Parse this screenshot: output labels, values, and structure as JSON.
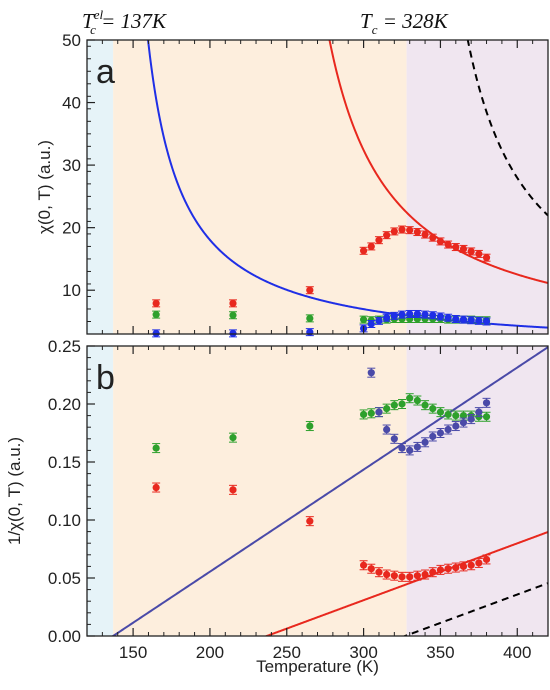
{
  "chart_data": [
    {
      "type": "scatter",
      "panel_label": "a",
      "ylabel": "χ(0, T) (a.u.)",
      "xlim": [
        120,
        420
      ],
      "ylim": [
        3,
        50
      ],
      "yticks": [
        10,
        20,
        30,
        40,
        50
      ],
      "ytick_labels": [
        "10",
        "20",
        "30",
        "40",
        "50"
      ],
      "shaded_regions": [
        {
          "from": 120,
          "to": 137,
          "color": "#e6f3f8"
        },
        {
          "from": 137,
          "to": 328,
          "color": "#fdeedd"
        },
        {
          "from": 328,
          "to": 420,
          "color": "#f0e6f0"
        }
      ],
      "series": [
        {
          "color": "#e8281e",
          "points": [
            [
              165,
              7.9
            ],
            [
              215,
              7.9
            ],
            [
              265,
              10.0
            ],
            [
              300,
              16.3
            ],
            [
              305,
              17.0
            ],
            [
              310,
              18.0
            ],
            [
              315,
              18.8
            ],
            [
              320,
              19.4
            ],
            [
              325,
              19.7
            ],
            [
              330,
              19.6
            ],
            [
              335,
              19.3
            ],
            [
              340,
              18.9
            ],
            [
              345,
              18.4
            ],
            [
              350,
              17.8
            ],
            [
              355,
              17.3
            ],
            [
              360,
              16.9
            ],
            [
              365,
              16.6
            ],
            [
              370,
              16.2
            ],
            [
              375,
              15.8
            ],
            [
              380,
              15.2
            ]
          ]
        },
        {
          "color": "#2ea02c",
          "points": [
            [
              165,
              6.1
            ],
            [
              215,
              6.0
            ],
            [
              265,
              5.5
            ],
            [
              300,
              5.3
            ],
            [
              305,
              5.2
            ],
            [
              310,
              5.3
            ],
            [
              315,
              5.3
            ],
            [
              320,
              5.4
            ],
            [
              325,
              5.4
            ],
            [
              330,
              5.4
            ],
            [
              335,
              5.4
            ],
            [
              340,
              5.4
            ],
            [
              345,
              5.4
            ],
            [
              350,
              5.4
            ],
            [
              355,
              5.3
            ],
            [
              360,
              5.3
            ],
            [
              365,
              5.3
            ],
            [
              370,
              5.3
            ],
            [
              375,
              5.2
            ],
            [
              380,
              5.2
            ]
          ]
        },
        {
          "color": "#1f2fe6",
          "points": [
            [
              165,
              3.1
            ],
            [
              215,
              3.1
            ],
            [
              265,
              3.3
            ],
            [
              300,
              3.9
            ],
            [
              305,
              4.6
            ],
            [
              310,
              5.1
            ],
            [
              315,
              5.6
            ],
            [
              320,
              5.9
            ],
            [
              325,
              6.1
            ],
            [
              330,
              6.2
            ],
            [
              335,
              6.2
            ],
            [
              340,
              6.1
            ],
            [
              345,
              6.0
            ],
            [
              350,
              5.8
            ],
            [
              355,
              5.6
            ],
            [
              360,
              5.4
            ],
            [
              365,
              5.3
            ],
            [
              370,
              5.2
            ],
            [
              375,
              5.1
            ],
            [
              380,
              5.0
            ]
          ]
        }
      ],
      "curves": [
        {
          "color": "#1f2fe6",
          "style": "solid",
          "function": "1/(0.00088*(T-137))"
        },
        {
          "color": "#e8281e",
          "style": "solid",
          "function": "1/(0.00049*(T-237))"
        },
        {
          "color": "#000000",
          "style": "dashed",
          "function": "1/(0.00049*(T-327))"
        }
      ]
    },
    {
      "type": "scatter",
      "panel_label": "b",
      "xlabel": "Temperature (K)",
      "ylabel": "1/χ(0, T) (a.u.)",
      "xlim": [
        120,
        420
      ],
      "ylim": [
        0,
        0.25
      ],
      "xticks": [
        150,
        200,
        250,
        300,
        350,
        400
      ],
      "xtick_labels": [
        "150",
        "200",
        "250",
        "300",
        "350",
        "400"
      ],
      "yticks": [
        0,
        0.05,
        0.1,
        0.15,
        0.2,
        0.25
      ],
      "ytick_labels": [
        "0.00",
        "0.05",
        "0.10",
        "0.15",
        "0.20",
        "0.25"
      ],
      "shaded_regions": [
        {
          "from": 120,
          "to": 137,
          "color": "#e6f3f8"
        },
        {
          "from": 137,
          "to": 328,
          "color": "#fdeedd"
        },
        {
          "from": 328,
          "to": 420,
          "color": "#f0e6f0"
        }
      ],
      "series": [
        {
          "color": "#e8281e",
          "points": [
            [
              165,
              0.128
            ],
            [
              215,
              0.126
            ],
            [
              265,
              0.099
            ],
            [
              300,
              0.061
            ],
            [
              305,
              0.058
            ],
            [
              310,
              0.055
            ],
            [
              315,
              0.053
            ],
            [
              320,
              0.052
            ],
            [
              325,
              0.051
            ],
            [
              330,
              0.051
            ],
            [
              335,
              0.052
            ],
            [
              340,
              0.053
            ],
            [
              345,
              0.055
            ],
            [
              350,
              0.057
            ],
            [
              355,
              0.058
            ],
            [
              360,
              0.059
            ],
            [
              365,
              0.06
            ],
            [
              370,
              0.061
            ],
            [
              375,
              0.063
            ],
            [
              380,
              0.066
            ]
          ]
        },
        {
          "color": "#2ea02c",
          "points": [
            [
              165,
              0.162
            ],
            [
              215,
              0.171
            ],
            [
              265,
              0.181
            ],
            [
              300,
              0.191
            ],
            [
              305,
              0.192
            ],
            [
              310,
              0.193
            ],
            [
              315,
              0.196
            ],
            [
              320,
              0.199
            ],
            [
              325,
              0.2
            ],
            [
              330,
              0.205
            ],
            [
              335,
              0.203
            ],
            [
              340,
              0.199
            ],
            [
              345,
              0.196
            ],
            [
              350,
              0.193
            ],
            [
              355,
              0.191
            ],
            [
              360,
              0.19
            ],
            [
              365,
              0.19
            ],
            [
              370,
              0.19
            ],
            [
              375,
              0.189
            ],
            [
              380,
              0.189
            ]
          ]
        },
        {
          "color": "#4a4aa8",
          "points": [
            [
              305,
              0.227
            ],
            [
              310,
              0.193
            ],
            [
              315,
              0.178
            ],
            [
              320,
              0.17
            ],
            [
              325,
              0.162
            ],
            [
              330,
              0.16
            ],
            [
              335,
              0.163
            ],
            [
              340,
              0.167
            ],
            [
              345,
              0.172
            ],
            [
              350,
              0.175
            ],
            [
              355,
              0.178
            ],
            [
              360,
              0.181
            ],
            [
              365,
              0.184
            ],
            [
              370,
              0.187
            ],
            [
              375,
              0.193
            ],
            [
              380,
              0.201
            ]
          ]
        }
      ],
      "curves": [
        {
          "color": "#4a4aa8",
          "style": "solid",
          "function": "0.00088*(T-137)"
        },
        {
          "color": "#e8281e",
          "style": "solid",
          "function": "0.00049*(T-237)"
        },
        {
          "color": "#000000",
          "style": "dashed",
          "function": "0.00049*(T-327)"
        }
      ]
    }
  ],
  "annotations": {
    "tc_el_main": "T",
    "tc_el_sup": "el",
    "tc_el_sub": "c",
    "tc_el_value": " = 137K",
    "tc_main": "T",
    "tc_sub": "c",
    "tc_value": " = 328K"
  }
}
